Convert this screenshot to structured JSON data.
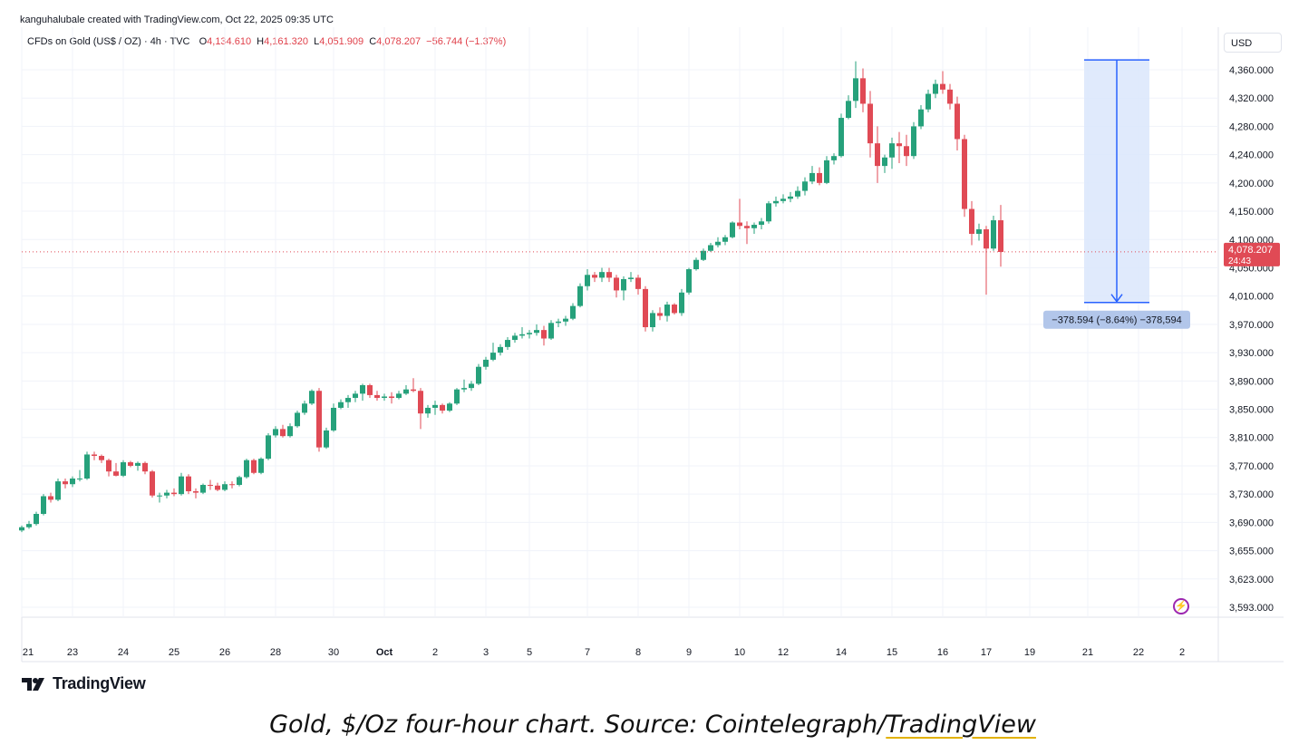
{
  "header": {
    "credit": "kanguhalubale created with TradingView.com, Oct 22, 2025 09:35 UTC",
    "symbol": "CFDs on Gold (US$ / OZ) · 4h · TVC",
    "ohlc": [
      {
        "label": "O",
        "value": "4,134.610"
      },
      {
        "label": "H",
        "value": "4,161.320"
      },
      {
        "label": "L",
        "value": "4,051.909"
      },
      {
        "label": "C",
        "value": "4,078.207"
      }
    ],
    "change": "−56.744 (−1.37%)",
    "currency": "USD"
  },
  "brand": {
    "name": "TradingView"
  },
  "caption": {
    "text": "Gold, $/Oz four-hour chart. Source: Cointelegraph/",
    "link": "TradingView"
  },
  "colors": {
    "up": "#26a17b",
    "down": "#e04a55",
    "accent": "#2962ff",
    "range_fill": "#dbe6fb"
  },
  "chart_data": {
    "type": "candlestick",
    "yticks": [
      {
        "v": 4360,
        "label": "4,360.000"
      },
      {
        "v": 4320,
        "label": "4,320.000"
      },
      {
        "v": 4280,
        "label": "4,280.000"
      },
      {
        "v": 4240,
        "label": "4,240.000"
      },
      {
        "v": 4200,
        "label": "4,200.000"
      },
      {
        "v": 4150,
        "label": "4,150.000"
      },
      {
        "v": 4100,
        "label": "4,100.000"
      },
      {
        "v": 4050,
        "label": "4,050.000"
      },
      {
        "v": 4010,
        "label": "4,010.000"
      },
      {
        "v": 3970,
        "label": "3,970.000"
      },
      {
        "v": 3930,
        "label": "3,930.000"
      },
      {
        "v": 3890,
        "label": "3,890.000"
      },
      {
        "v": 3850,
        "label": "3,850.000"
      },
      {
        "v": 3810,
        "label": "3,810.000"
      },
      {
        "v": 3770,
        "label": "3,770.000"
      },
      {
        "v": 3730,
        "label": "3,730.000"
      },
      {
        "v": 3690,
        "label": "3,690.000"
      },
      {
        "v": 3655,
        "label": "3,655.000"
      },
      {
        "v": 3623,
        "label": "3,623.000"
      },
      {
        "v": 3593,
        "label": "3,593.000"
      }
    ],
    "xticks": [
      {
        "i": 0,
        "label": "21"
      },
      {
        "i": 7,
        "label": "23"
      },
      {
        "i": 14,
        "label": "24"
      },
      {
        "i": 21,
        "label": "25"
      },
      {
        "i": 28,
        "label": "26"
      },
      {
        "i": 35,
        "label": "28"
      },
      {
        "i": 43,
        "label": "30"
      },
      {
        "i": 50,
        "label": "Oct"
      },
      {
        "i": 57,
        "label": "2"
      },
      {
        "i": 64,
        "label": "3"
      },
      {
        "i": 70,
        "label": "5"
      },
      {
        "i": 78,
        "label": "7"
      },
      {
        "i": 85,
        "label": "8"
      },
      {
        "i": 92,
        "label": "9"
      },
      {
        "i": 99,
        "label": "10"
      },
      {
        "i": 105,
        "label": "12"
      },
      {
        "i": 113,
        "label": "14"
      },
      {
        "i": 120,
        "label": "15"
      },
      {
        "i": 127,
        "label": "16"
      },
      {
        "i": 133,
        "label": "17"
      },
      {
        "i": 139,
        "label": "19"
      },
      {
        "i": 147,
        "label": "21"
      },
      {
        "i": 154,
        "label": "22"
      },
      {
        "i": 160,
        "label": "2"
      }
    ],
    "candles": [
      [
        3680,
        3686,
        3678,
        3684
      ],
      [
        3684,
        3692,
        3682,
        3688
      ],
      [
        3688,
        3705,
        3686,
        3702
      ],
      [
        3702,
        3730,
        3700,
        3727
      ],
      [
        3727,
        3732,
        3718,
        3722
      ],
      [
        3722,
        3752,
        3720,
        3748
      ],
      [
        3748,
        3752,
        3738,
        3744
      ],
      [
        3744,
        3755,
        3740,
        3752
      ],
      [
        3752,
        3764,
        3748,
        3752
      ],
      [
        3752,
        3790,
        3750,
        3786
      ],
      [
        3786,
        3790,
        3778,
        3784
      ],
      [
        3784,
        3786,
        3774,
        3778
      ],
      [
        3778,
        3780,
        3755,
        3762
      ],
      [
        3762,
        3774,
        3755,
        3756
      ],
      [
        3756,
        3778,
        3754,
        3775
      ],
      [
        3775,
        3777,
        3768,
        3770
      ],
      [
        3770,
        3776,
        3763,
        3774
      ],
      [
        3774,
        3776,
        3758,
        3762
      ],
      [
        3762,
        3764,
        3725,
        3728
      ],
      [
        3728,
        3732,
        3718,
        3728
      ],
      [
        3728,
        3736,
        3724,
        3732
      ],
      [
        3732,
        3738,
        3727,
        3730
      ],
      [
        3730,
        3760,
        3728,
        3755
      ],
      [
        3755,
        3758,
        3730,
        3734
      ],
      [
        3734,
        3738,
        3724,
        3732
      ],
      [
        3732,
        3745,
        3730,
        3743
      ],
      [
        3743,
        3750,
        3736,
        3742
      ],
      [
        3742,
        3746,
        3734,
        3736
      ],
      [
        3736,
        3748,
        3734,
        3744
      ],
      [
        3744,
        3748,
        3738,
        3743
      ],
      [
        3743,
        3756,
        3741,
        3754
      ],
      [
        3754,
        3780,
        3752,
        3778
      ],
      [
        3778,
        3780,
        3758,
        3760
      ],
      [
        3760,
        3782,
        3758,
        3780
      ],
      [
        3780,
        3816,
        3778,
        3813
      ],
      [
        3813,
        3826,
        3810,
        3822
      ],
      [
        3822,
        3828,
        3810,
        3812
      ],
      [
        3812,
        3830,
        3810,
        3826
      ],
      [
        3826,
        3848,
        3824,
        3845
      ],
      [
        3845,
        3862,
        3842,
        3858
      ],
      [
        3858,
        3878,
        3856,
        3876
      ],
      [
        3876,
        3880,
        3790,
        3796
      ],
      [
        3796,
        3824,
        3794,
        3820
      ],
      [
        3820,
        3858,
        3818,
        3852
      ],
      [
        3852,
        3864,
        3850,
        3860
      ],
      [
        3860,
        3870,
        3852,
        3866
      ],
      [
        3866,
        3876,
        3860,
        3872
      ],
      [
        3872,
        3886,
        3862,
        3884
      ],
      [
        3884,
        3886,
        3866,
        3870
      ],
      [
        3870,
        3876,
        3862,
        3866
      ],
      [
        3866,
        3872,
        3862,
        3868
      ],
      [
        3868,
        3874,
        3858,
        3866
      ],
      [
        3866,
        3876,
        3864,
        3872
      ],
      [
        3872,
        3884,
        3870,
        3878
      ],
      [
        3878,
        3894,
        3874,
        3876
      ],
      [
        3876,
        3880,
        3822,
        3844
      ],
      [
        3844,
        3856,
        3838,
        3852
      ],
      [
        3852,
        3862,
        3842,
        3856
      ],
      [
        3856,
        3858,
        3844,
        3848
      ],
      [
        3848,
        3860,
        3846,
        3858
      ],
      [
        3858,
        3880,
        3856,
        3878
      ],
      [
        3878,
        3892,
        3874,
        3880
      ],
      [
        3880,
        3890,
        3876,
        3886
      ],
      [
        3886,
        3914,
        3884,
        3910
      ],
      [
        3910,
        3924,
        3906,
        3920
      ],
      [
        3920,
        3944,
        3918,
        3930
      ],
      [
        3930,
        3942,
        3926,
        3938
      ],
      [
        3938,
        3952,
        3934,
        3948
      ],
      [
        3948,
        3958,
        3944,
        3954
      ],
      [
        3954,
        3966,
        3950,
        3956
      ],
      [
        3956,
        3962,
        3950,
        3958
      ],
      [
        3958,
        3970,
        3954,
        3962
      ],
      [
        3962,
        3968,
        3940,
        3950
      ],
      [
        3950,
        3976,
        3948,
        3972
      ],
      [
        3972,
        3978,
        3966,
        3974
      ],
      [
        3974,
        3982,
        3968,
        3978
      ],
      [
        3978,
        4000,
        3976,
        3996
      ],
      [
        3996,
        4028,
        3994,
        4024
      ],
      [
        4024,
        4048,
        4018,
        4040
      ],
      [
        4040,
        4044,
        4030,
        4036
      ],
      [
        4036,
        4050,
        4030,
        4044
      ],
      [
        4044,
        4050,
        4030,
        4036
      ],
      [
        4036,
        4040,
        4008,
        4018
      ],
      [
        4018,
        4038,
        4004,
        4034
      ],
      [
        4034,
        4044,
        4030,
        4036
      ],
      [
        4036,
        4040,
        4012,
        4020
      ],
      [
        4020,
        4024,
        3960,
        3966
      ],
      [
        3966,
        3990,
        3960,
        3986
      ],
      [
        3986,
        3994,
        3976,
        3982
      ],
      [
        3982,
        4002,
        3974,
        3998
      ],
      [
        3998,
        4000,
        3984,
        3986
      ],
      [
        3986,
        4020,
        3982,
        4015
      ],
      [
        4015,
        4050,
        4012,
        4048
      ],
      [
        4048,
        4068,
        4046,
        4064
      ],
      [
        4064,
        4084,
        4062,
        4080
      ],
      [
        4080,
        4094,
        4078,
        4090
      ],
      [
        4090,
        4104,
        4086,
        4096
      ],
      [
        4096,
        4108,
        4090,
        4104
      ],
      [
        4104,
        4132,
        4102,
        4130
      ],
      [
        4130,
        4172,
        4118,
        4124
      ],
      [
        4124,
        4132,
        4092,
        4120
      ],
      [
        4120,
        4130,
        4110,
        4126
      ],
      [
        4126,
        4138,
        4118,
        4132
      ],
      [
        4132,
        4168,
        4128,
        4164
      ],
      [
        4164,
        4176,
        4158,
        4168
      ],
      [
        4168,
        4180,
        4164,
        4172
      ],
      [
        4172,
        4184,
        4166,
        4176
      ],
      [
        4176,
        4194,
        4172,
        4186
      ],
      [
        4186,
        4208,
        4178,
        4202
      ],
      [
        4202,
        4224,
        4198,
        4214
      ],
      [
        4214,
        4222,
        4196,
        4200
      ],
      [
        4200,
        4238,
        4198,
        4232
      ],
      [
        4232,
        4242,
        4226,
        4238
      ],
      [
        4238,
        4298,
        4236,
        4292
      ],
      [
        4292,
        4324,
        4290,
        4316
      ],
      [
        4316,
        4372,
        4306,
        4348
      ],
      [
        4348,
        4362,
        4300,
        4312
      ],
      [
        4312,
        4330,
        4236,
        4256
      ],
      [
        4256,
        4280,
        4200,
        4224
      ],
      [
        4224,
        4240,
        4214,
        4236
      ],
      [
        4236,
        4264,
        4220,
        4256
      ],
      [
        4256,
        4272,
        4228,
        4252
      ],
      [
        4252,
        4268,
        4224,
        4238
      ],
      [
        4238,
        4286,
        4234,
        4280
      ],
      [
        4280,
        4310,
        4276,
        4304
      ],
      [
        4304,
        4332,
        4300,
        4326
      ],
      [
        4326,
        4346,
        4320,
        4340
      ],
      [
        4340,
        4358,
        4326,
        4332
      ],
      [
        4332,
        4340,
        4304,
        4312
      ],
      [
        4312,
        4322,
        4246,
        4262
      ],
      [
        4262,
        4268,
        4140,
        4154
      ],
      [
        4154,
        4168,
        4090,
        4110
      ],
      [
        4110,
        4128,
        4098,
        4118
      ],
      [
        4118,
        4124,
        4012,
        4084
      ],
      [
        4084,
        4142,
        4080,
        4134
      ],
      [
        4134,
        4161,
        4052,
        4078
      ]
    ],
    "current_price": {
      "value": 4078.207,
      "label": "4,078.207",
      "countdown": "24:43"
    },
    "measure": {
      "high": 4374,
      "low": 4001,
      "from_index": 147,
      "to_index": 155,
      "label": "−378.594 (−8.64%) −378,594"
    }
  }
}
